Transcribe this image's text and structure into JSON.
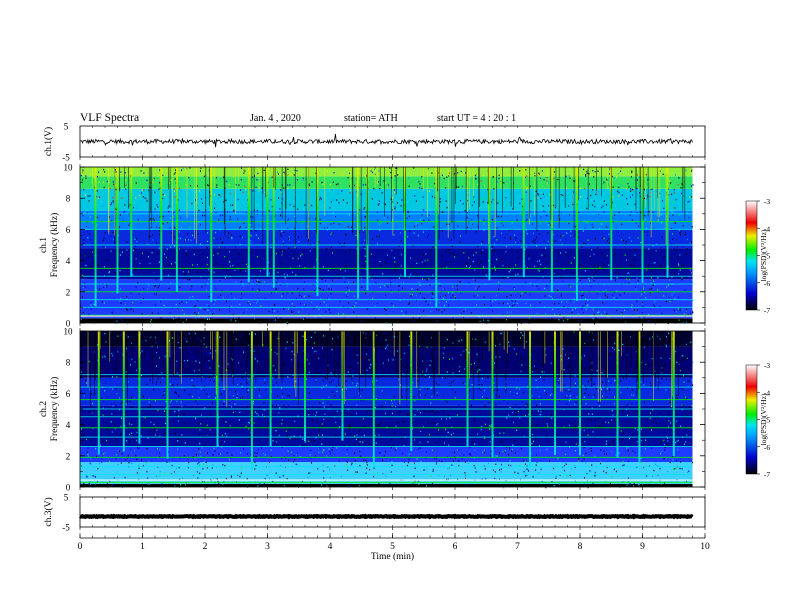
{
  "header": {
    "title": "VLF  Spectra",
    "date": "Jan. 4  , 2020",
    "station": "station= ATH",
    "start": "start  UT  =   4  : 20 : 1"
  },
  "chart_data": [
    {
      "type": "line",
      "panel": "ch1-waveform",
      "ylabel": "ch.1(V)",
      "ylim": [
        -5,
        5
      ],
      "yticks": [
        "5",
        "-5"
      ],
      "x_range_min": [
        0,
        9.8
      ],
      "level_v": 0.0,
      "fluctuation_v": 0.7,
      "color": "#000000"
    },
    {
      "type": "heatmap",
      "panel": "ch1-spectrogram",
      "ylabel": "ch.1\nFrequency  (kHz)",
      "ylim": [
        0,
        10
      ],
      "yticks": [
        "0",
        "2",
        "4",
        "6",
        "8",
        "10"
      ],
      "xlim": [
        0,
        10
      ],
      "x_data_end_min": 9.8,
      "colorbar": {
        "label": "log(PSD)(V²/Hz)",
        "range": [
          -7,
          -3
        ],
        "ticks": [
          "-3",
          "-4",
          "-5",
          "-6",
          "-7"
        ]
      },
      "description_bands_khz": [
        0.5,
        1.0,
        1.5,
        2.0,
        2.5,
        3.0,
        3.5,
        5.0,
        6.0,
        6.5,
        7.0
      ],
      "sferic_times_min": [
        0.25,
        0.6,
        0.82,
        1.3,
        1.55,
        2.1,
        2.7,
        3.0,
        3.1,
        3.8,
        4.45,
        4.6,
        5.2,
        5.7,
        6.55,
        7.1,
        7.55,
        7.95,
        8.5,
        9.0,
        9.4
      ]
    },
    {
      "type": "heatmap",
      "panel": "ch2-spectrogram",
      "ylabel": "ch.2\nFrequency  (kHz)",
      "ylim": [
        0,
        10
      ],
      "yticks": [
        "0",
        "2",
        "4",
        "6",
        "8",
        "10"
      ],
      "xlim": [
        0,
        10
      ],
      "x_data_end_min": 9.8,
      "colorbar": {
        "label": "log(PSD)(V²/Hz)",
        "range": [
          -7,
          -3
        ],
        "ticks": [
          "-3",
          "-4",
          "-5",
          "-6",
          "-7"
        ]
      },
      "description_bands_khz": [
        0.3,
        0.8,
        1.3,
        1.9,
        2.6,
        3.2,
        3.8,
        4.5,
        5.0,
        5.6,
        6.4,
        7.2
      ],
      "sferic_times_min": [
        0.3,
        0.7,
        0.95,
        1.4,
        2.2,
        2.75,
        3.05,
        3.6,
        4.2,
        4.7,
        5.3,
        6.2,
        6.6,
        7.2,
        7.6,
        8.0,
        8.6,
        8.95,
        9.5
      ]
    },
    {
      "type": "line",
      "panel": "ch3-waveform",
      "ylabel": "ch.3(V)",
      "ylim": [
        -5,
        5
      ],
      "yticks": [
        "5",
        "-5"
      ],
      "x_range_min": [
        0,
        9.8
      ],
      "level_v": -1.5,
      "fluctuation_v": 0.15,
      "color": "#000000"
    }
  ],
  "xaxis": {
    "label": "Time  (min)",
    "ticks": [
      "0",
      "1",
      "2",
      "3",
      "4",
      "5",
      "6",
      "7",
      "8",
      "9",
      "10"
    ],
    "xlim": [
      0,
      10
    ]
  },
  "colors": {
    "low": "#000000",
    "blue": "#0000cd",
    "cyan": "#00e5ee",
    "green": "#00ee00",
    "yellow": "#eeee00",
    "red": "#ee0000",
    "high": "#ffffff"
  }
}
